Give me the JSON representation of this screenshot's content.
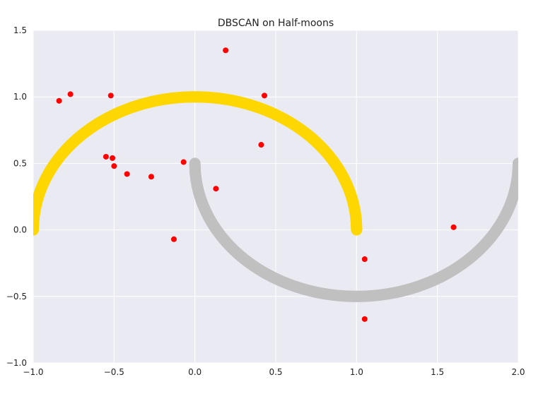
{
  "chart_data": {
    "type": "scatter",
    "title": "DBSCAN on Half-moons",
    "xlabel": "",
    "ylabel": "",
    "xlim": [
      -1.0,
      2.0
    ],
    "ylim": [
      -1.0,
      1.5
    ],
    "x_ticks": [
      -1.0,
      -0.5,
      0.0,
      0.5,
      1.0,
      1.5,
      2.0
    ],
    "x_tick_labels": [
      "−1.0",
      "−0.5",
      "0.0",
      "0.5",
      "1.0",
      "1.5",
      "2.0"
    ],
    "y_ticks": [
      -1.0,
      -0.5,
      0.0,
      0.5,
      1.0,
      1.5
    ],
    "y_tick_labels": [
      "−1.0",
      "−0.5",
      "0.0",
      "0.5",
      "1.0",
      "1.5"
    ],
    "grid": true,
    "background_color": "#eaeaf2",
    "series": [
      {
        "cluster": "upper moon",
        "color": "#ffd700",
        "shape": "arc",
        "center": [
          0.0,
          0.0
        ],
        "radius": 1.0,
        "angle_range_deg": [
          0,
          180
        ],
        "point_count": 500
      },
      {
        "cluster": "lower moon",
        "color": "#c0c0c0",
        "shape": "arc",
        "center": [
          1.0,
          0.5
        ],
        "radius": 1.0,
        "angle_range_deg": [
          180,
          360
        ],
        "point_count": 500
      },
      {
        "cluster": "noise",
        "color": "#ff0000",
        "points": [
          [
            -0.84,
            0.97
          ],
          [
            -0.77,
            1.02
          ],
          [
            -0.52,
            1.01
          ],
          [
            0.19,
            1.35
          ],
          [
            0.43,
            1.01
          ],
          [
            -0.55,
            0.55
          ],
          [
            -0.51,
            0.54
          ],
          [
            -0.5,
            0.48
          ],
          [
            -0.42,
            0.42
          ],
          [
            -0.27,
            0.4
          ],
          [
            -0.07,
            0.51
          ],
          [
            0.13,
            0.31
          ],
          [
            0.41,
            0.64
          ],
          [
            -0.13,
            -0.07
          ],
          [
            1.05,
            -0.22
          ],
          [
            1.05,
            -0.67
          ],
          [
            1.6,
            0.02
          ]
        ]
      }
    ]
  }
}
